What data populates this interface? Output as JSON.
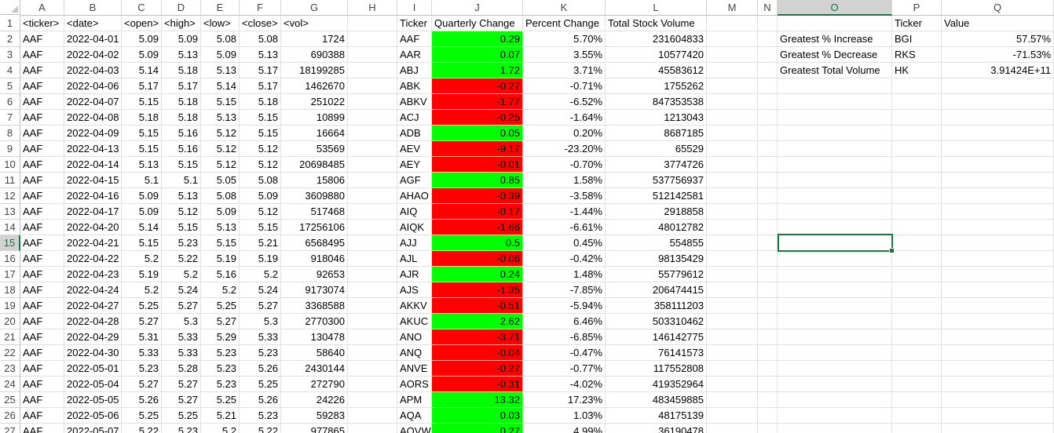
{
  "columns": [
    "A",
    "B",
    "C",
    "D",
    "E",
    "F",
    "G",
    "H",
    "I",
    "J",
    "K",
    "L",
    "M",
    "N",
    "O",
    "P",
    "Q"
  ],
  "selected_column": "O",
  "selected_row": 15,
  "row_numbers": [
    "1",
    "2",
    "3",
    "4",
    "5",
    "6",
    "7",
    "8",
    "9",
    "10",
    "11",
    "12",
    "13",
    "14",
    "15",
    "16",
    "17",
    "18",
    "19",
    "20",
    "21",
    "22",
    "23",
    "24",
    "25",
    "26",
    "27"
  ],
  "headers": {
    "A": "<ticker>",
    "B": "<date>",
    "C": "<open>",
    "D": "<high>",
    "E": "<low>",
    "F": "<close>",
    "G": "<vol>",
    "I": "Ticker",
    "J": "Quarterly Change",
    "K": "Percent Change",
    "L": "Total Stock Volume",
    "P": "Ticker",
    "Q": "Value"
  },
  "raw_rows": [
    [
      "AAF",
      "2022-04-01",
      "5.09",
      "5.09",
      "5.08",
      "5.08",
      "1724"
    ],
    [
      "AAF",
      "2022-04-02",
      "5.09",
      "5.13",
      "5.09",
      "5.13",
      "690388"
    ],
    [
      "AAF",
      "2022-04-03",
      "5.14",
      "5.18",
      "5.13",
      "5.17",
      "18199285"
    ],
    [
      "AAF",
      "2022-04-06",
      "5.17",
      "5.17",
      "5.14",
      "5.17",
      "1462670"
    ],
    [
      "AAF",
      "2022-04-07",
      "5.15",
      "5.18",
      "5.15",
      "5.18",
      "251022"
    ],
    [
      "AAF",
      "2022-04-08",
      "5.18",
      "5.18",
      "5.13",
      "5.15",
      "10899"
    ],
    [
      "AAF",
      "2022-04-09",
      "5.15",
      "5.16",
      "5.12",
      "5.15",
      "16664"
    ],
    [
      "AAF",
      "2022-04-13",
      "5.15",
      "5.16",
      "5.12",
      "5.12",
      "53569"
    ],
    [
      "AAF",
      "2022-04-14",
      "5.13",
      "5.15",
      "5.12",
      "5.12",
      "20698485"
    ],
    [
      "AAF",
      "2022-04-15",
      "5.1",
      "5.1",
      "5.05",
      "5.08",
      "15806"
    ],
    [
      "AAF",
      "2022-04-16",
      "5.09",
      "5.13",
      "5.08",
      "5.09",
      "3609880"
    ],
    [
      "AAF",
      "2022-04-17",
      "5.09",
      "5.12",
      "5.09",
      "5.12",
      "517468"
    ],
    [
      "AAF",
      "2022-04-20",
      "5.14",
      "5.15",
      "5.13",
      "5.15",
      "17256106"
    ],
    [
      "AAF",
      "2022-04-21",
      "5.15",
      "5.23",
      "5.15",
      "5.21",
      "6568495"
    ],
    [
      "AAF",
      "2022-04-22",
      "5.2",
      "5.22",
      "5.19",
      "5.19",
      "918046"
    ],
    [
      "AAF",
      "2022-04-23",
      "5.19",
      "5.2",
      "5.16",
      "5.2",
      "92653"
    ],
    [
      "AAF",
      "2022-04-24",
      "5.2",
      "5.24",
      "5.2",
      "5.24",
      "9173074"
    ],
    [
      "AAF",
      "2022-04-27",
      "5.25",
      "5.27",
      "5.25",
      "5.27",
      "3368588"
    ],
    [
      "AAF",
      "2022-04-28",
      "5.27",
      "5.3",
      "5.27",
      "5.3",
      "2770300"
    ],
    [
      "AAF",
      "2022-04-29",
      "5.31",
      "5.33",
      "5.29",
      "5.33",
      "130478"
    ],
    [
      "AAF",
      "2022-04-30",
      "5.33",
      "5.33",
      "5.23",
      "5.23",
      "58640"
    ],
    [
      "AAF",
      "2022-05-01",
      "5.23",
      "5.28",
      "5.23",
      "5.26",
      "2430144"
    ],
    [
      "AAF",
      "2022-05-04",
      "5.27",
      "5.27",
      "5.23",
      "5.25",
      "272790"
    ],
    [
      "AAF",
      "2022-05-05",
      "5.26",
      "5.27",
      "5.25",
      "5.26",
      "24226"
    ],
    [
      "AAF",
      "2022-05-06",
      "5.25",
      "5.25",
      "5.21",
      "5.23",
      "59283"
    ],
    [
      "AAF",
      "2022-05-07",
      "5.22",
      "5.23",
      "5.2",
      "5.22",
      "977865"
    ]
  ],
  "summary_rows": [
    {
      "ticker": "AAF",
      "change": "0.29",
      "pct": "5.70%",
      "vol": "231604833",
      "color": "#00ff00"
    },
    {
      "ticker": "AAR",
      "change": "0.07",
      "pct": "3.55%",
      "vol": "10577420",
      "color": "#00ff00"
    },
    {
      "ticker": "ABJ",
      "change": "1.72",
      "pct": "3.71%",
      "vol": "45583612",
      "color": "#00ff00"
    },
    {
      "ticker": "ABK",
      "change": "-0.27",
      "pct": "-0.71%",
      "vol": "1755262",
      "color": "#ff0000"
    },
    {
      "ticker": "ABKV",
      "change": "-1.77",
      "pct": "-6.52%",
      "vol": "847353538",
      "color": "#ff0000"
    },
    {
      "ticker": "ACJ",
      "change": "-0.25",
      "pct": "-1.64%",
      "vol": "1213043",
      "color": "#ff0000"
    },
    {
      "ticker": "ADB",
      "change": "0.05",
      "pct": "0.20%",
      "vol": "8687185",
      "color": "#00ff00"
    },
    {
      "ticker": "AEV",
      "change": "-9.17",
      "pct": "-23.20%",
      "vol": "65529",
      "color": "#ff0000"
    },
    {
      "ticker": "AEY",
      "change": "-0.01",
      "pct": "-0.70%",
      "vol": "3774726",
      "color": "#ff0000"
    },
    {
      "ticker": "AGF",
      "change": "0.85",
      "pct": "1.58%",
      "vol": "537756937",
      "color": "#00ff00"
    },
    {
      "ticker": "AHAO",
      "change": "-0.39",
      "pct": "-3.58%",
      "vol": "512142581",
      "color": "#ff0000"
    },
    {
      "ticker": "AIQ",
      "change": "-0.17",
      "pct": "-1.44%",
      "vol": "2918858",
      "color": "#ff0000"
    },
    {
      "ticker": "AIQK",
      "change": "-1.66",
      "pct": "-6.61%",
      "vol": "48012782",
      "color": "#ff0000"
    },
    {
      "ticker": "AJJ",
      "change": "0.5",
      "pct": "0.45%",
      "vol": "554855",
      "color": "#00ff00"
    },
    {
      "ticker": "AJL",
      "change": "-0.06",
      "pct": "-0.42%",
      "vol": "98135429",
      "color": "#ff0000"
    },
    {
      "ticker": "AJR",
      "change": "0.24",
      "pct": "1.48%",
      "vol": "55779612",
      "color": "#00ff00"
    },
    {
      "ticker": "AJS",
      "change": "-1.35",
      "pct": "-7.85%",
      "vol": "206474415",
      "color": "#ff0000"
    },
    {
      "ticker": "AKKV",
      "change": "-0.51",
      "pct": "-5.94%",
      "vol": "358111203",
      "color": "#ff0000"
    },
    {
      "ticker": "AKUC",
      "change": "2.62",
      "pct": "6.46%",
      "vol": "503310462",
      "color": "#00ff00"
    },
    {
      "ticker": "ANO",
      "change": "-3.71",
      "pct": "-6.85%",
      "vol": "146142775",
      "color": "#ff0000"
    },
    {
      "ticker": "ANQ",
      "change": "-0.04",
      "pct": "-0.47%",
      "vol": "76141573",
      "color": "#ff0000"
    },
    {
      "ticker": "ANVE",
      "change": "-0.27",
      "pct": "-0.77%",
      "vol": "117552808",
      "color": "#ff0000"
    },
    {
      "ticker": "AORS",
      "change": "-0.31",
      "pct": "-4.02%",
      "vol": "419352964",
      "color": "#ff0000"
    },
    {
      "ticker": "APM",
      "change": "13.32",
      "pct": "17.23%",
      "vol": "483459885",
      "color": "#00ff00"
    },
    {
      "ticker": "AQA",
      "change": "0.03",
      "pct": "1.03%",
      "vol": "48175139",
      "color": "#00ff00"
    },
    {
      "ticker": "AQVW",
      "change": "0.27",
      "pct": "4.99%",
      "vol": "36190478",
      "color": "#00ff00"
    }
  ],
  "greatest": [
    {
      "label": "Greatest % Increase",
      "ticker": "BGI",
      "value": "57.57%"
    },
    {
      "label": "Greatest % Decrease",
      "ticker": "RKS",
      "value": "-71.53%"
    },
    {
      "label": "Greatest Total Volume",
      "ticker": "HK",
      "value": "3.91424E+11"
    }
  ]
}
